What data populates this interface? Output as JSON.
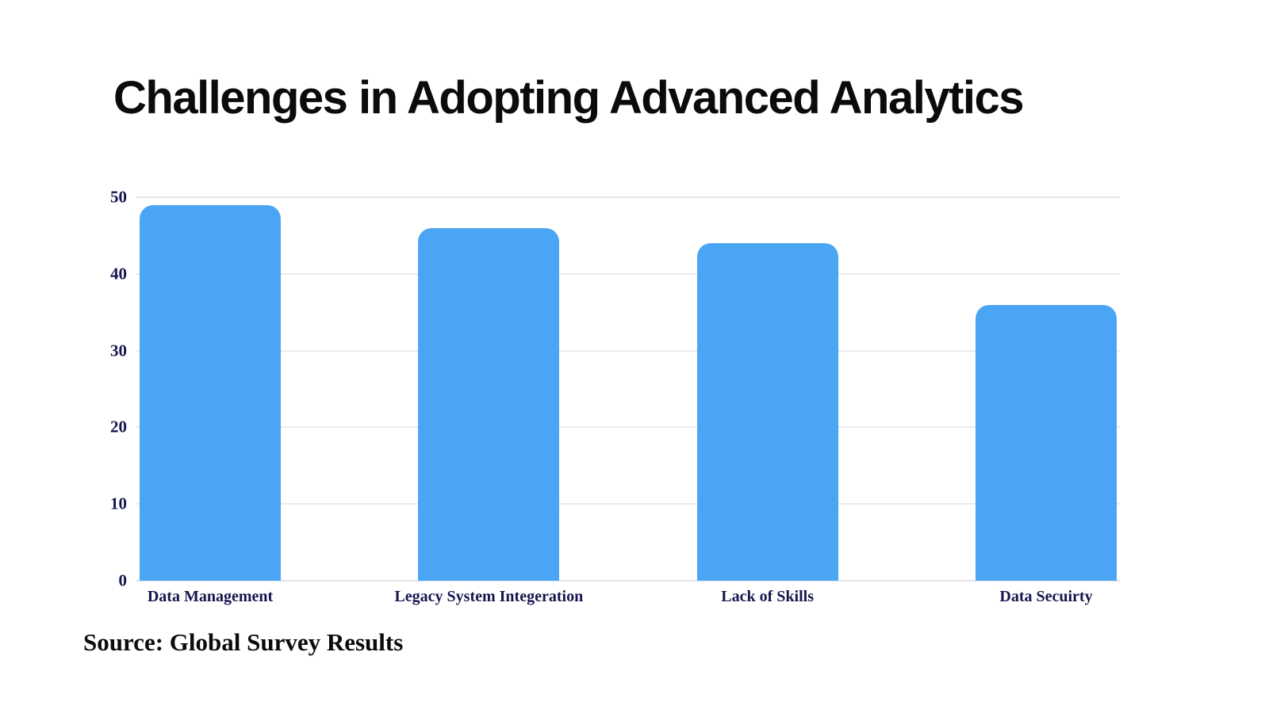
{
  "page": {
    "background_color": "#ffffff"
  },
  "chart_data": {
    "type": "bar",
    "title": "Challenges in Adopting Advanced Analytics",
    "source": "Source: Global Survey Results",
    "categories": [
      "Data Management",
      "Legacy System Integeration",
      "Lack of Skills",
      "Data Secuirty"
    ],
    "values": [
      49,
      46,
      44,
      36
    ],
    "xlabel": "",
    "ylabel": "",
    "ylim": [
      0,
      50
    ],
    "y_ticks": [
      0,
      10,
      20,
      30,
      40,
      50
    ],
    "grid": "horizontal",
    "legend": "none",
    "bar_color": "#4BA5F5",
    "axis_label_color": "#16164e",
    "gridline_color": "#e9e9f1"
  }
}
